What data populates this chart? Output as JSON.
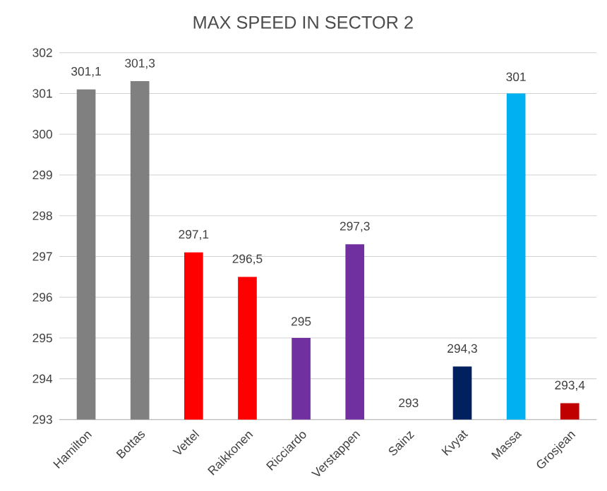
{
  "chart_data": {
    "type": "bar",
    "title": "MAX SPEED IN SECTOR 2",
    "categories": [
      "Hamilton",
      "Bottas",
      "Vettel",
      "Raikkonen",
      "Ricciardo",
      "Verstappen",
      "Sainz",
      "Kvyat",
      "Massa",
      "Grosjean"
    ],
    "values": [
      301.1,
      301.3,
      297.1,
      296.5,
      295,
      297.3,
      293,
      294.3,
      301,
      293.4
    ],
    "value_labels": [
      "301,1",
      "301,3",
      "297,1",
      "296,5",
      "295",
      "297,3",
      "293",
      "294,3",
      "301",
      "293,4"
    ],
    "colors": [
      "#808080",
      "#808080",
      "#ff0000",
      "#ff0000",
      "#7030a0",
      "#7030a0",
      "#4472c4",
      "#002060",
      "#00b0f0",
      "#c00000"
    ],
    "ylim": [
      293,
      302
    ],
    "yticks": [
      293,
      294,
      295,
      296,
      297,
      298,
      299,
      300,
      301,
      302
    ],
    "grid": "y"
  }
}
